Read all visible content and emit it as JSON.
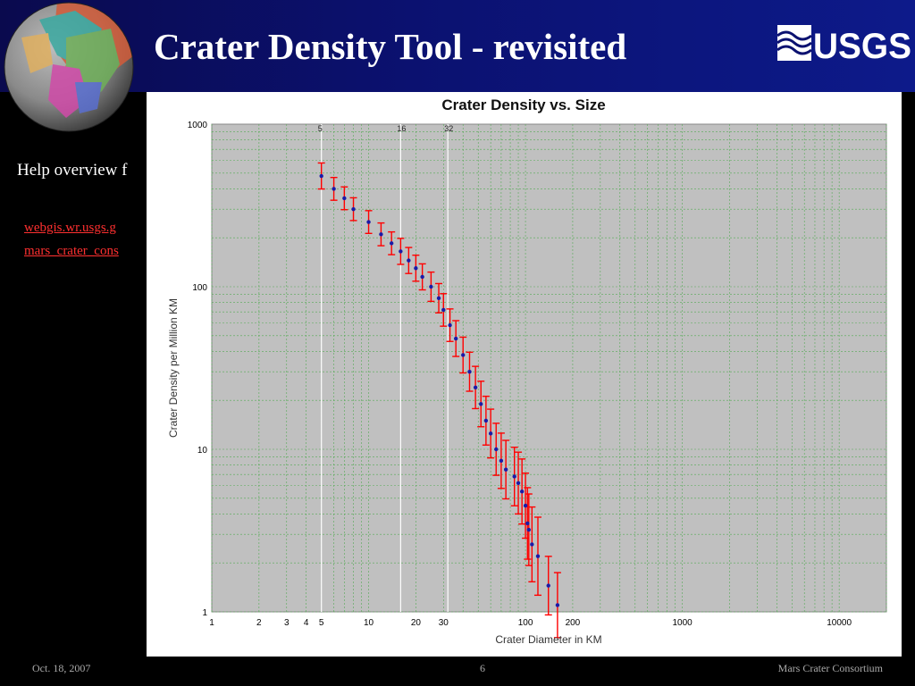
{
  "slide": {
    "title": "Crater Density Tool - revisited",
    "body_text": "Help overview f",
    "links": [
      "webgis.wr.usgs.g",
      "mars_crater_cons"
    ],
    "logo_text": "USGS",
    "footer": {
      "date": "Oct. 18, 2007",
      "page": "6",
      "org": "Mars Crater Consortium"
    }
  },
  "colors": {
    "banner": "#0b1170",
    "plot_bg": "#c0c0c0",
    "grid": "#55aa55",
    "error_bar": "#ff0000",
    "point": "#1a1aa8",
    "link": "#ff3030"
  },
  "chart_data": {
    "type": "scatter",
    "title": "Crater Density vs. Size",
    "xlabel": "Crater Diameter in KM",
    "ylabel": "Crater Density per Million KM",
    "xscale": "log",
    "yscale": "log",
    "xlim": [
      1,
      20000
    ],
    "ylim": [
      1,
      1000
    ],
    "x_tick_labels": [
      {
        "value": 1,
        "label": "1"
      },
      {
        "value": 2,
        "label": "2"
      },
      {
        "value": 3,
        "label": "3"
      },
      {
        "value": 4,
        "label": "4"
      },
      {
        "value": 5,
        "label": "5"
      },
      {
        "value": 10,
        "label": "10"
      },
      {
        "value": 20,
        "label": "20"
      },
      {
        "value": 30,
        "label": "30"
      },
      {
        "value": 100,
        "label": "100"
      },
      {
        "value": 200,
        "label": "200"
      },
      {
        "value": 1000,
        "label": "1000"
      },
      {
        "value": 10000,
        "label": "10000"
      }
    ],
    "y_tick_labels": [
      {
        "value": 1,
        "label": "1"
      },
      {
        "value": 10,
        "label": "10"
      },
      {
        "value": 100,
        "label": "100"
      },
      {
        "value": 1000,
        "label": "1000"
      }
    ],
    "reference_lines": [
      {
        "x": 5,
        "label": "5"
      },
      {
        "x": 16,
        "label": "16"
      },
      {
        "x": 32,
        "label": "32"
      }
    ],
    "grid": true,
    "series": [
      {
        "points": [
          {
            "x": 5,
            "y": 480,
            "err": 0.08
          },
          {
            "x": 6,
            "y": 400,
            "err": 0.07
          },
          {
            "x": 7,
            "y": 350,
            "err": 0.07
          },
          {
            "x": 8,
            "y": 300,
            "err": 0.07
          },
          {
            "x": 10,
            "y": 250,
            "err": 0.07
          },
          {
            "x": 12,
            "y": 210,
            "err": 0.07
          },
          {
            "x": 14,
            "y": 185,
            "err": 0.07
          },
          {
            "x": 16,
            "y": 165,
            "err": 0.08
          },
          {
            "x": 18,
            "y": 145,
            "err": 0.08
          },
          {
            "x": 20,
            "y": 130,
            "err": 0.08
          },
          {
            "x": 22,
            "y": 115,
            "err": 0.08
          },
          {
            "x": 25,
            "y": 100,
            "err": 0.09
          },
          {
            "x": 28,
            "y": 85,
            "err": 0.09
          },
          {
            "x": 30,
            "y": 72,
            "err": 0.1
          },
          {
            "x": 33,
            "y": 58,
            "err": 0.1
          },
          {
            "x": 36,
            "y": 48,
            "err": 0.11
          },
          {
            "x": 40,
            "y": 38,
            "err": 0.11
          },
          {
            "x": 44,
            "y": 30,
            "err": 0.12
          },
          {
            "x": 48,
            "y": 24,
            "err": 0.13
          },
          {
            "x": 52,
            "y": 19,
            "err": 0.14
          },
          {
            "x": 56,
            "y": 15,
            "err": 0.15
          },
          {
            "x": 60,
            "y": 12.5,
            "err": 0.15
          },
          {
            "x": 65,
            "y": 10,
            "err": 0.16
          },
          {
            "x": 70,
            "y": 8.5,
            "err": 0.17
          },
          {
            "x": 75,
            "y": 7.5,
            "err": 0.18
          },
          {
            "x": 85,
            "y": 6.8,
            "err": 0.18
          },
          {
            "x": 90,
            "y": 6.2,
            "err": 0.19
          },
          {
            "x": 95,
            "y": 5.5,
            "err": 0.2
          },
          {
            "x": 100,
            "y": 4.5,
            "err": 0.2
          },
          {
            "x": 103,
            "y": 3.5,
            "err": 0.22
          },
          {
            "x": 105,
            "y": 3.2,
            "err": 0.22
          },
          {
            "x": 110,
            "y": 2.6,
            "err": 0.23
          },
          {
            "x": 120,
            "y": 2.2,
            "err": 0.24
          },
          {
            "x": 140,
            "y": 1.45,
            "err": 0.18
          },
          {
            "x": 160,
            "y": 1.1,
            "err": 0.2
          }
        ]
      }
    ]
  }
}
